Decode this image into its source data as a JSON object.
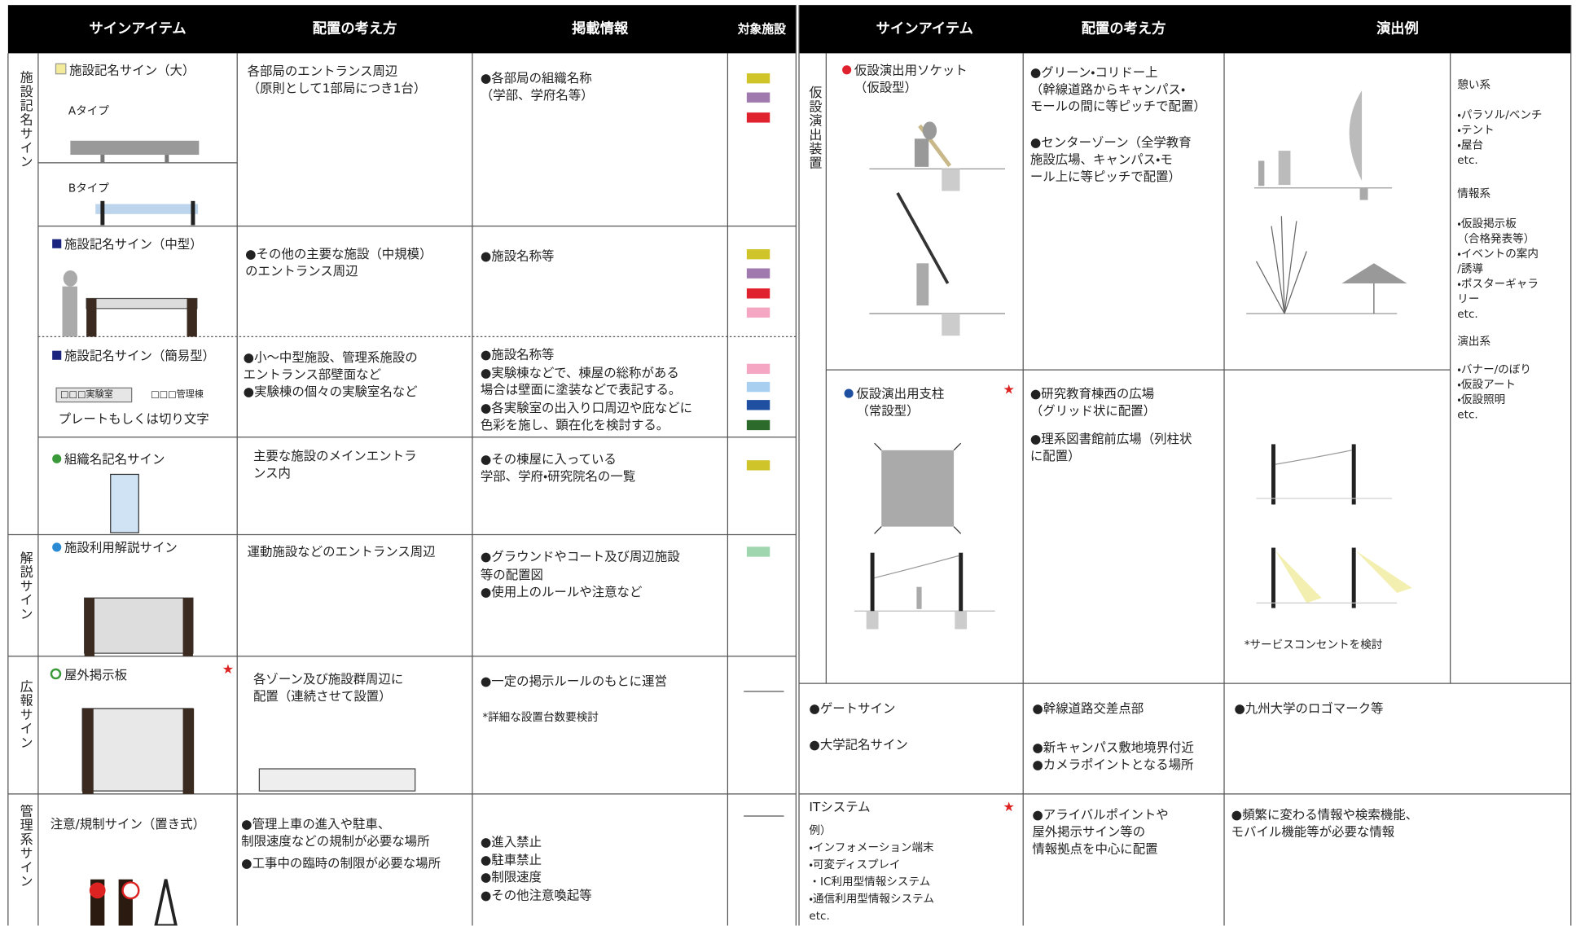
{
  "left": {
    "headers": [
      "サインアイテム",
      "配置の考え方",
      "掲載情報",
      "対象施設"
    ],
    "groups": [
      {
        "label": "施設記名サイン",
        "rows": [
          {
            "item": "施設記名サイン（大）",
            "types": [
              "Aタイプ",
              "Bタイプ"
            ],
            "placement": [
              "各部局のエントランス周辺",
              "（原則として1部局につき1台）"
            ],
            "info": [
              "●各部局の組織名称",
              "（学部、学府名等）"
            ]
          },
          {
            "item": "施設記名サイン（中型）",
            "placement": [
              "●その他の主要な施設（中規模）",
              "のエントランス周辺"
            ],
            "info": [
              "●施設名称等"
            ]
          },
          {
            "item": "施設記名サイン（簡易型）",
            "plates": [
              "□□□実験室",
              "□□□管理棟"
            ],
            "caption": "プレートもしくは切り文字",
            "placement": [
              "●小～中型施設、管理系施設の",
              "エントランス部壁面など",
              "●実験棟の個々の実験室名など"
            ],
            "info": [
              "●施設名称等",
              "●実験棟などで、棟屋の総称がある",
              "場合は壁面に塗装などで表記する。",
              "●各実験室の出入り口周辺や庇などに",
              "色彩を施し、顕在化を検討する。"
            ]
          },
          {
            "item": "組織名記名サイン",
            "placement": [
              "主要な施設のメインエントラ",
              "ンス内"
            ],
            "info": [
              "●その棟屋に入っている",
              "学部、学府・研究院名の一覧"
            ]
          }
        ]
      },
      {
        "label": "解説サイン",
        "rows": [
          {
            "item": "施設利用解説サイン",
            "placement": [
              "運動施設などのエントランス周辺"
            ],
            "info": [
              "●グラウンドやコート及び周辺施設",
              "等の配置図",
              "●使用上のルールや注意など"
            ]
          }
        ]
      },
      {
        "label": "広報サイン",
        "rows": [
          {
            "item": "屋外掲示板",
            "placement": [
              "各ゾーン及び施設群周辺に",
              "配置（連続させて設置）"
            ],
            "info": [
              "●一定の掲示ルールのもとに運営"
            ],
            "note": "*詳細な設置台数要検討"
          }
        ]
      },
      {
        "label": "管理系サイン",
        "rows": [
          {
            "item": "注意/規制サイン（置き式）",
            "placement": [
              "●管理上車の進入や駐車、",
              "制限速度などの規制が必要な場所",
              "●工事中の臨時の制限が必要な場所"
            ],
            "info": [
              "●進入禁止",
              "●駐車禁止",
              "●制限速度",
              "●その他注意喚起等"
            ]
          }
        ]
      }
    ]
  },
  "right": {
    "headers": [
      "サインアイテム",
      "配置の考え方",
      "演出例"
    ],
    "group_label": "仮設演出装置",
    "rows": [
      {
        "item": [
          "仮設演出用ソケット",
          "（仮設型）"
        ],
        "placement": [
          "●グリーン・コリドー上",
          "（幹線道路からキャンパス・",
          "モールの間に等ピッチで配置）",
          "●センターゾーン（全学教育",
          "施設広場、キャンパス・モ",
          "ール上に等ピッチで配置）"
        ]
      },
      {
        "item": [
          "仮設演出用支柱",
          "（常設型）"
        ],
        "placement": [
          "●研究教育棟西の広場",
          "（グリッド状に配置）",
          "●理系図書館前広場（列柱状",
          "に配置）"
        ],
        "example_note": "*サービスコンセントを検討"
      }
    ],
    "examples": [
      "憩い系",
      "・パラソル/ベンチ",
      "・テント",
      "・屋台",
      "etc.",
      "情報系",
      "・仮設掲示板",
      "（合格発表等）",
      "・イベントの案内",
      "/誘導",
      "・ポスターギャラ",
      "リー",
      "etc.",
      "演出系",
      "・バナー/のぼり",
      "・仮設アート",
      "・仮設照明",
      "etc."
    ],
    "gate": {
      "items": [
        "●ゲートサイン",
        "●大学記名サイン"
      ],
      "placement": [
        "●幹線道路交差点部",
        "●新キャンパス敷地境界付近",
        "●カメラポイントとなる場所"
      ],
      "example": "●九州大学のロゴマーク等"
    },
    "it": {
      "item": "ITシステム",
      "sub": [
        "例）",
        "・インフォメーション端末",
        "・可変ディスプレイ",
        "・IC利用型情報システム",
        "・通信利用型情報システム",
        "etc."
      ],
      "placement": [
        "●アライバルポイントや",
        "屋外掲示サイン等の",
        "情報拠点を中心に配置"
      ],
      "example": [
        "●頻繁に変わる情報や検索機能、",
        "モバイル機能等が必要な情報"
      ]
    }
  }
}
